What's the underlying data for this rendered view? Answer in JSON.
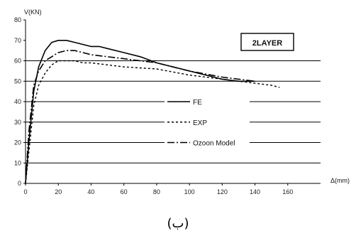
{
  "chart_data": {
    "type": "line",
    "title": "",
    "annotation": "2LAYER",
    "ylabel": "V(KN)",
    "xlabel": "Δ(mm)",
    "caption": "(ب)",
    "xlim": [
      0,
      180
    ],
    "ylim": [
      0,
      80
    ],
    "x_ticks": [
      0,
      20,
      40,
      60,
      80,
      100,
      120,
      140,
      160
    ],
    "x_tick_labels": [
      "0",
      "20",
      "40",
      "60",
      "80",
      "100",
      "120",
      "140",
      "160"
    ],
    "y_ticks": [
      0,
      10,
      20,
      30,
      40,
      50,
      60,
      70,
      80
    ],
    "y_tick_labels": [
      "0",
      "10",
      "20",
      "30",
      "40",
      "50",
      "60",
      "70",
      "80"
    ],
    "grid": {
      "horizontal_lines_at": [
        10,
        20,
        30,
        40,
        50,
        60
      ]
    },
    "legend_position": "center-bottom",
    "series": [
      {
        "name": "FE",
        "style": "solid",
        "x": [
          0,
          2,
          5,
          8,
          12,
          16,
          20,
          25,
          30,
          35,
          40,
          45,
          50,
          60,
          70,
          80,
          90,
          100,
          110,
          120,
          130,
          140
        ],
        "y": [
          0,
          20,
          45,
          57,
          65,
          69,
          70,
          70,
          69,
          68,
          67,
          67,
          66,
          64,
          62,
          59,
          57,
          55,
          53,
          51,
          50,
          50
        ]
      },
      {
        "name": "EXP",
        "style": "dashed",
        "x": [
          0,
          2,
          5,
          8,
          12,
          16,
          20,
          25,
          30,
          35,
          40,
          50,
          60,
          80,
          100,
          120,
          140,
          150,
          155
        ],
        "y": [
          0,
          15,
          38,
          48,
          54,
          58,
          60,
          60,
          60,
          59,
          59,
          58,
          57,
          56,
          53,
          51,
          49,
          48,
          47
        ]
      },
      {
        "name": "Ozoon Model",
        "style": "dashdot",
        "x": [
          0,
          2,
          5,
          8,
          12,
          16,
          20,
          25,
          30,
          35,
          40,
          50,
          60,
          80,
          100,
          120,
          140
        ],
        "y": [
          0,
          25,
          48,
          55,
          60,
          62,
          64,
          65,
          65,
          64,
          63,
          62,
          61,
          59,
          55,
          52,
          50
        ]
      }
    ]
  }
}
